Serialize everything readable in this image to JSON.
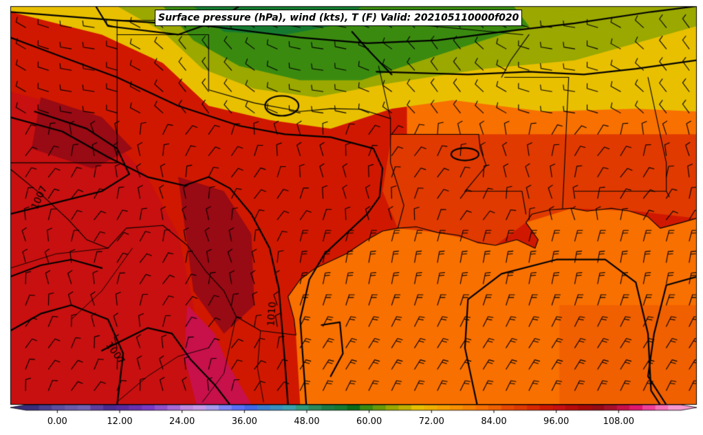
{
  "title": "Surface pressure (hPa), wind (kts), T (F) Valid: 202105110000f020",
  "isobar_labels": [
    "1007",
    "1010",
    "1007"
  ],
  "colorbar": {
    "tick_labels": [
      "0.00",
      "12.00",
      "24.00",
      "36.00",
      "48.00",
      "60.00",
      "72.00",
      "84.00",
      "96.00",
      "108.00"
    ],
    "tick_values": [
      0,
      12,
      24,
      36,
      48,
      60,
      72,
      84,
      96,
      108
    ],
    "min": -6,
    "max": 120,
    "bin_width": 3,
    "colors": [
      "#3a2d7a",
      "#4a3d8f",
      "#5b4fa0",
      "#6a5aaa",
      "#7262b4",
      "#5e3f9e",
      "#4b2b90",
      "#5a2aa0",
      "#6a30b0",
      "#7a3ac4",
      "#9150cc",
      "#a86ad6",
      "#c08ae2",
      "#c89ae8",
      "#a89af0",
      "#7c84f6",
      "#5870f8",
      "#4068e8",
      "#3a7ed0",
      "#3a90c0",
      "#3aa0b0",
      "#2f9a7c",
      "#2a8a5a",
      "#1e7a44",
      "#157a30",
      "#0a6a18",
      "#3a8a10",
      "#6a9a08",
      "#9aa800",
      "#c0b000",
      "#e8c000",
      "#f0b000",
      "#f8a000",
      "#f89000",
      "#f88000",
      "#f87000",
      "#f06000",
      "#e84800",
      "#e03a00",
      "#d82800",
      "#d01800",
      "#c81010",
      "#b80a0a",
      "#a80808",
      "#980a14",
      "#a8102a",
      "#c8104a",
      "#e01870",
      "#f0409a",
      "#f870b8",
      "#f898d0"
    ]
  },
  "map_colors": {
    "gulf": "#f87000",
    "gulf_far": "#f06000",
    "texas_hot": "#d01800",
    "mexico_hot": "#c81010",
    "deep_hot": "#980a14",
    "magenta": "#c8104a",
    "plains_yellow": "#e8c000",
    "plains_olive": "#9aa800",
    "plains_green": "#3a8a10",
    "dark_green": "#157a30",
    "orange": "#f87000",
    "red_orange": "#e03a00"
  },
  "projection": {
    "lon_min": -106.5,
    "lon_max": -84.0,
    "lat_min": 23.5,
    "lat_max": 37.5
  },
  "state_borders": [
    [
      [
        -103.0,
        37.0
      ],
      [
        -103.0,
        36.5
      ]
    ],
    [
      [
        -103.0,
        36.5
      ],
      [
        -100.0,
        36.5
      ],
      [
        -100.0,
        34.56
      ]
    ],
    [
      [
        -100.0,
        34.56
      ],
      [
        -98.5,
        34.1
      ],
      [
        -97.0,
        33.8
      ],
      [
        -96.0,
        33.9
      ],
      [
        -95.0,
        33.88
      ],
      [
        -94.04,
        33.55
      ]
    ],
    [
      [
        -94.04,
        33.55
      ],
      [
        -94.04,
        32.0
      ],
      [
        -93.8,
        31.2
      ],
      [
        -93.6,
        30.5
      ],
      [
        -93.8,
        29.7
      ]
    ],
    [
      [
        -94.43,
        35.4
      ],
      [
        -94.04,
        33.55
      ]
    ],
    [
      [
        -103.0,
        37.0
      ],
      [
        -94.62,
        37.0
      ]
    ],
    [
      [
        -94.62,
        37.0
      ],
      [
        -89.7,
        36.5
      ]
    ],
    [
      [
        -94.04,
        33.0
      ],
      [
        -91.15,
        33.0
      ]
    ],
    [
      [
        -91.15,
        33.0
      ],
      [
        -91.1,
        32.5
      ],
      [
        -90.9,
        31.9
      ],
      [
        -91.6,
        31.0
      ]
    ],
    [
      [
        -91.6,
        31.0
      ],
      [
        -89.73,
        31.0
      ],
      [
        -89.6,
        30.2
      ]
    ],
    [
      [
        -90.3,
        35.0
      ],
      [
        -88.2,
        35.0
      ]
    ],
    [
      [
        -88.2,
        35.0
      ],
      [
        -88.4,
        30.4
      ]
    ],
    [
      [
        -85.6,
        35.0
      ],
      [
        -85.0,
        32.0
      ],
      [
        -85.0,
        31.0
      ]
    ],
    [
      [
        -88.0,
        31.0
      ],
      [
        -85.0,
        31.0
      ],
      [
        -84.9,
        30.8
      ]
    ],
    [
      [
        -106.6,
        32.0
      ],
      [
        -103.0,
        32.0
      ],
      [
        -103.0,
        36.5
      ]
    ],
    [
      [
        -90.4,
        35.0
      ],
      [
        -90.1,
        35.6
      ],
      [
        -89.7,
        36.2
      ],
      [
        -89.5,
        36.5
      ]
    ]
  ],
  "coastline": [
    [
      [
        -97.14,
        25.95
      ],
      [
        -97.2,
        26.5
      ],
      [
        -97.4,
        27.3
      ],
      [
        -97.0,
        27.9
      ],
      [
        -96.5,
        28.3
      ],
      [
        -95.5,
        28.8
      ],
      [
        -94.8,
        29.3
      ],
      [
        -94.3,
        29.6
      ],
      [
        -93.8,
        29.7
      ],
      [
        -93.2,
        29.75
      ],
      [
        -92.5,
        29.55
      ],
      [
        -91.8,
        29.45
      ],
      [
        -91.2,
        29.2
      ],
      [
        -90.6,
        29.1
      ],
      [
        -89.9,
        29.3
      ],
      [
        -89.3,
        29.0
      ],
      [
        -89.2,
        29.3
      ],
      [
        -89.6,
        29.9
      ],
      [
        -89.4,
        30.2
      ],
      [
        -88.8,
        30.35
      ],
      [
        -88.1,
        30.4
      ],
      [
        -87.6,
        30.3
      ],
      [
        -86.8,
        30.4
      ],
      [
        -86.2,
        30.3
      ],
      [
        -85.6,
        30.1
      ],
      [
        -85.2,
        29.7
      ],
      [
        -84.5,
        29.9
      ],
      [
        -84.0,
        30.05
      ]
    ]
  ],
  "rio_grande": [
    [
      [
        -106.5,
        31.78
      ],
      [
        -105.5,
        30.9
      ],
      [
        -104.6,
        30.0
      ],
      [
        -104.0,
        29.3
      ],
      [
        -103.3,
        29.0
      ],
      [
        -102.7,
        29.7
      ],
      [
        -101.5,
        29.8
      ],
      [
        -100.7,
        29.1
      ],
      [
        -100.1,
        28.2
      ],
      [
        -99.5,
        27.5
      ],
      [
        -99.1,
        26.6
      ],
      [
        -98.3,
        26.1
      ],
      [
        -97.14,
        25.95
      ]
    ]
  ],
  "mexico_state_borders": [
    [
      [
        -106.5,
        28.3
      ],
      [
        -105.0,
        28.8
      ],
      [
        -103.3,
        29.0
      ]
    ],
    [
      [
        -104.5,
        26.5
      ],
      [
        -103.5,
        27.5
      ],
      [
        -102.5,
        29.0
      ]
    ],
    [
      [
        -103.0,
        23.6
      ],
      [
        -102.0,
        24.5
      ],
      [
        -101.0,
        25.2
      ],
      [
        -100.0,
        25.5
      ]
    ],
    [
      [
        -100.2,
        23.6
      ],
      [
        -99.5,
        24.6
      ],
      [
        -99.1,
        26.6
      ]
    ],
    [
      [
        -98.2,
        23.6
      ],
      [
        -98.4,
        24.8
      ],
      [
        -98.3,
        26.1
      ]
    ]
  ],
  "isobars": [
    [
      [
        -106.5,
        36.4
      ],
      [
        -105.0,
        35.8
      ],
      [
        -103.0,
        35.0
      ],
      [
        -101.0,
        34.0
      ],
      [
        -99.0,
        33.3
      ],
      [
        -97.5,
        33.0
      ],
      [
        -96.0,
        32.9
      ],
      [
        -94.6,
        32.5
      ],
      [
        -94.3,
        31.8
      ],
      [
        -94.4,
        30.8
      ],
      [
        -94.8,
        30.2
      ],
      [
        -95.4,
        29.6
      ],
      [
        -96.2,
        28.8
      ],
      [
        -96.7,
        27.9
      ],
      [
        -97.0,
        26.5
      ],
      [
        -96.9,
        25.0
      ],
      [
        -96.8,
        23.5
      ]
    ],
    [
      [
        -106.5,
        33.6
      ],
      [
        -104.8,
        33.1
      ],
      [
        -103.3,
        32.2
      ],
      [
        -102.0,
        31.5
      ],
      [
        -100.8,
        31.2
      ],
      [
        -100.0,
        31.5
      ],
      [
        -99.3,
        31.1
      ],
      [
        -98.6,
        30.2
      ],
      [
        -98.0,
        29.0
      ],
      [
        -97.7,
        27.6
      ],
      [
        -97.6,
        26.3
      ],
      [
        -97.5,
        25.0
      ],
      [
        -97.4,
        23.5
      ]
    ],
    [
      [
        -105.7,
        33.8
      ],
      [
        -104.0,
        33.2
      ],
      [
        -103.0,
        32.5
      ],
      [
        -102.6,
        31.6
      ],
      [
        -103.5,
        31.0
      ],
      [
        -105.0,
        30.6
      ],
      [
        -106.5,
        30.2
      ]
    ],
    [
      [
        -106.5,
        26.1
      ],
      [
        -105.5,
        26.7
      ],
      [
        -104.5,
        27.0
      ],
      [
        -103.3,
        26.5
      ],
      [
        -102.8,
        25.3
      ],
      [
        -103.0,
        23.5
      ]
    ],
    [
      [
        -106.5,
        28.0
      ],
      [
        -105.5,
        28.4
      ],
      [
        -104.5,
        28.6
      ],
      [
        -103.5,
        28.3
      ]
    ],
    [
      [
        -103.5,
        25.4
      ],
      [
        -102.0,
        26.2
      ],
      [
        -101.2,
        26.0
      ],
      [
        -100.6,
        25.1
      ],
      [
        -99.8,
        24.2
      ],
      [
        -99.3,
        23.5
      ]
    ],
    [
      [
        -106.5,
        37.3
      ],
      [
        -103.0,
        37.0
      ],
      [
        -100.0,
        36.8
      ],
      [
        -97.0,
        36.4
      ],
      [
        -94.8,
        36.2
      ],
      [
        -92.5,
        36.3
      ],
      [
        -90.4,
        36.6
      ],
      [
        -88.0,
        36.9
      ],
      [
        -85.5,
        37.3
      ],
      [
        -84.0,
        37.5
      ]
    ],
    [
      [
        -94.5,
        35.2
      ],
      [
        -91.5,
        35.1
      ],
      [
        -89.5,
        35.2
      ],
      [
        -87.7,
        35.1
      ],
      [
        -86.0,
        35.3
      ],
      [
        -84.0,
        35.6
      ]
    ],
    [
      [
        -95.3,
        36.6
      ],
      [
        -94.8,
        36.0
      ],
      [
        -94.0,
        35.1
      ]
    ],
    [
      [
        -103.7,
        37.5
      ],
      [
        -103.3,
        36.8
      ],
      [
        -101.0,
        36.5
      ],
      [
        -99.7,
        37.0
      ],
      [
        -99.0,
        37.5
      ]
    ],
    [
      [
        -91.2,
        23.5
      ],
      [
        -91.6,
        25.5
      ],
      [
        -91.5,
        27.2
      ],
      [
        -90.4,
        28.1
      ],
      [
        -88.6,
        28.6
      ],
      [
        -87.0,
        28.6
      ],
      [
        -86.0,
        27.8
      ],
      [
        -85.6,
        26.0
      ],
      [
        -85.5,
        24.0
      ],
      [
        -85.2,
        23.5
      ]
    ],
    [
      [
        -96.0,
        24.5
      ],
      [
        -95.6,
        25.3
      ],
      [
        -95.7,
        26.4
      ],
      [
        -96.3,
        26.3
      ]
    ],
    [
      [
        -84.0,
        28.0
      ],
      [
        -85.0,
        27.7
      ],
      [
        -85.4,
        26.0
      ],
      [
        -85.6,
        24.5
      ],
      [
        -85.0,
        23.5
      ]
    ]
  ],
  "isobar_loops": [
    {
      "lon": -97.6,
      "lat": 34.0,
      "rx": 0.55,
      "ry": 0.35
    },
    {
      "lon": -91.6,
      "lat": 32.3,
      "rx": 0.45,
      "ry": 0.22
    }
  ],
  "wind_barbs": {
    "lon_start": -106.0,
    "lon_step": 0.75,
    "lat_start": 24.0,
    "lat_step": 0.75
  },
  "colorbar_edge": "#000000"
}
